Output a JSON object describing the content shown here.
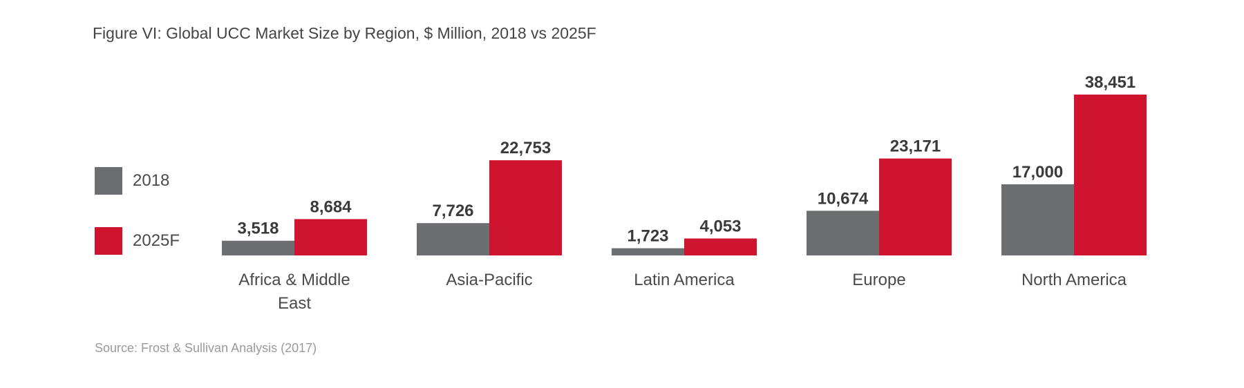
{
  "chart_data": {
    "type": "bar",
    "title": "Figure VI: Global UCC Market Size by Region, $ Million, 2018 vs 2025F",
    "source": "Source: Frost & Sullivan Analysis (2017)",
    "categories": [
      [
        "Africa & Middle",
        "East"
      ],
      [
        "Asia-Pacific"
      ],
      [
        "Latin America"
      ],
      [
        "Europe"
      ],
      [
        "North America"
      ]
    ],
    "series": [
      {
        "name": "2018",
        "color": "#6d6e71",
        "values": [
          3518,
          7726,
          1723,
          10674,
          17000
        ],
        "labels": [
          "3,518",
          "7,726",
          "1,723",
          "10,674",
          "17,000"
        ]
      },
      {
        "name": "2025F",
        "color": "#cf1430",
        "values": [
          8684,
          22753,
          4053,
          23171,
          38451
        ],
        "labels": [
          "8,684",
          "22,753",
          "4,053",
          "23,171",
          "38,451"
        ]
      }
    ],
    "ylim": [
      0,
      38451
    ],
    "grid": false,
    "legend_position": "left"
  }
}
